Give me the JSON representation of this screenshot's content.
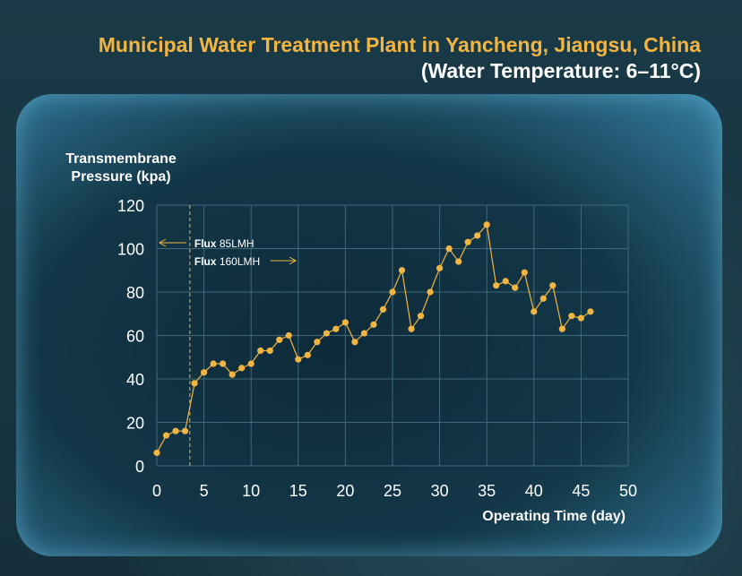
{
  "title": {
    "line1": "Municipal Water Treatment Plant in Yancheng, Jiangsu, China",
    "line2": "(Water Temperature: 6–11°C)"
  },
  "colors": {
    "title_accent": "#f2b541",
    "series": "#f2b541",
    "grid": "#3f6a7a"
  },
  "chart_data": {
    "type": "line",
    "title": "Municipal Water Treatment Plant in Yancheng, Jiangsu, China",
    "subtitle": "(Water Temperature: 6–11°C)",
    "xlabel": "Operating Time (day)",
    "ylabel": "Transmembrane Pressure (kpa)",
    "xlim": [
      0,
      50
    ],
    "ylim": [
      0,
      120
    ],
    "xticks": [
      0,
      5,
      10,
      15,
      20,
      25,
      30,
      35,
      40,
      45,
      50
    ],
    "yticks": [
      0,
      20,
      40,
      60,
      80,
      100,
      120
    ],
    "grid": true,
    "series": [
      {
        "x": [
          0,
          1,
          2,
          3,
          4,
          5,
          6,
          7,
          8,
          9,
          10,
          11,
          12,
          13,
          14,
          15,
          16,
          17,
          18,
          19,
          20,
          21,
          22,
          23,
          24,
          25,
          26,
          27,
          28,
          29,
          30,
          31,
          32,
          33,
          34,
          35,
          36,
          37,
          38,
          39,
          40,
          41,
          42,
          43,
          44,
          45,
          46
        ],
        "y": [
          6,
          14,
          16,
          16,
          38,
          43,
          47,
          47,
          42,
          45,
          47,
          53,
          53,
          58,
          60,
          49,
          51,
          57,
          61,
          63,
          66,
          57,
          61,
          65,
          72,
          80,
          90,
          63,
          69,
          80,
          91,
          100,
          94,
          103,
          106,
          111,
          83,
          85,
          82,
          89,
          71,
          77,
          83,
          63,
          69,
          68,
          71
        ]
      }
    ],
    "annotations": {
      "divider_x": 3.5,
      "flux_before_bold": "Flux",
      "flux_before_value": "85LMH",
      "flux_after_bold": "Flux",
      "flux_after_value": "160LMH"
    }
  }
}
